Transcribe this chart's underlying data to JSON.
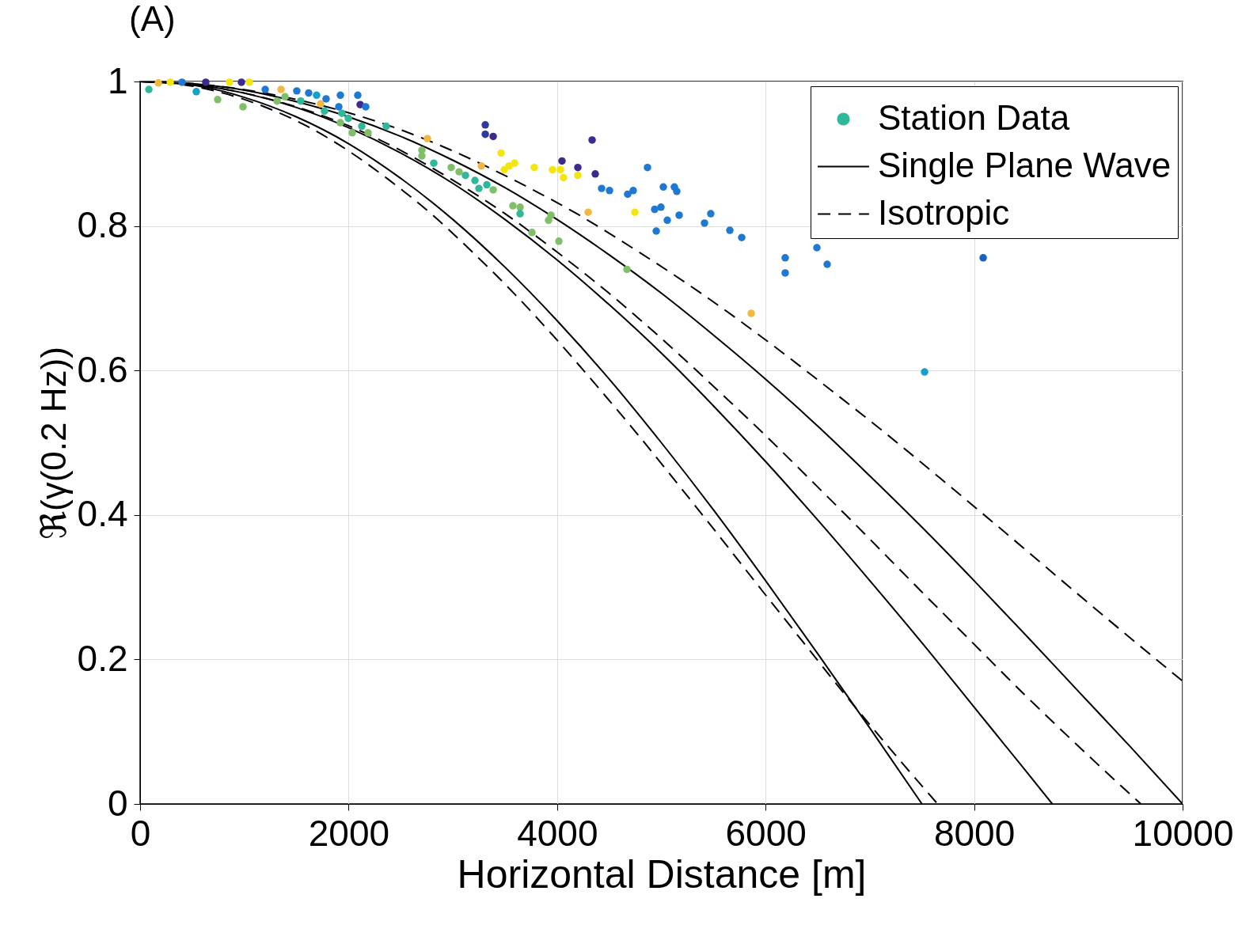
{
  "chart_data": {
    "type": "scatter",
    "title": "(A)",
    "xlabel": "Horizontal Distance [m]",
    "ylabel": "ℜ(γ(0.2 Hz))",
    "xlim": [
      0,
      10000
    ],
    "xticks": [
      0,
      2000,
      4000,
      6000,
      8000,
      10000
    ],
    "ylim": [
      0,
      1
    ],
    "yticks": [
      0,
      0.2,
      0.4,
      0.6,
      0.8,
      1
    ],
    "grid": true,
    "legend": "top right",
    "series": [
      {
        "name": "Station Data",
        "marker": "circle",
        "color": "#30b89a",
        "x": [
          84,
          175,
          289,
          402,
          539,
          630,
          744,
          858,
          972,
          987,
          1048,
          1200,
          1352,
          1390,
          1503,
          1617,
          1693,
          1731,
          1784,
          1921,
          1936,
          2035,
          2088,
          2111,
          2164,
          1921,
          2126,
          2187,
          2361,
          1769,
          1541,
          1314,
          1997,
          1906,
          2756,
          2703,
          2703,
          2817,
          2984,
          3060,
          3121,
          3212,
          3250,
          3273,
          3311,
          3311,
          3387,
          3326,
          3387,
          3463,
          3493,
          3538,
          3592,
          3576,
          3645,
          3645,
          3759,
          3781,
          3918,
          3941,
          3956,
          4017,
          4032,
          4047,
          4062,
          4199,
          4199,
          4298,
          4336,
          4366,
          4427,
          4503,
          4670,
          4677,
          4730,
          4746,
          4867,
          4936,
          4951,
          4996,
          5019,
          5057,
          5125,
          5148,
          5171,
          5414,
          5474,
          5657,
          5771,
          5862,
          6188,
          6188,
          6492,
          6591,
          7525,
          8087
        ],
        "values": [
          0.989,
          0.998,
          0.999,
          0.999,
          0.986,
          0.999,
          0.975,
          0.999,
          0.999,
          0.965,
          0.999,
          0.989,
          0.989,
          0.979,
          0.987,
          0.984,
          0.981,
          0.969,
          0.976,
          0.981,
          0.956,
          0.929,
          0.981,
          0.968,
          0.965,
          0.943,
          0.938,
          0.929,
          0.938,
          0.959,
          0.973,
          0.973,
          0.949,
          0.965,
          0.921,
          0.905,
          0.897,
          0.887,
          0.881,
          0.875,
          0.87,
          0.863,
          0.852,
          0.883,
          0.94,
          0.927,
          0.924,
          0.857,
          0.85,
          0.901,
          0.878,
          0.883,
          0.887,
          0.828,
          0.826,
          0.817,
          0.791,
          0.881,
          0.808,
          0.815,
          0.878,
          0.779,
          0.878,
          0.89,
          0.867,
          0.881,
          0.87,
          0.819,
          0.919,
          0.872,
          0.852,
          0.849,
          0.74,
          0.844,
          0.849,
          0.819,
          0.881,
          0.823,
          0.793,
          0.826,
          0.854,
          0.808,
          0.854,
          0.848,
          0.815,
          0.804,
          0.817,
          0.794,
          0.784,
          0.679,
          0.756,
          0.735,
          0.77,
          0.747,
          0.598,
          0.756
        ],
        "colors": [
          "#30b89a",
          "#f0b840",
          "#f5e50f",
          "#1f78d1",
          "#14a0c8",
          "#3f2a8c",
          "#7fbf6a",
          "#f5e50f",
          "#3f2a8c",
          "#7fbf6a",
          "#f5e50f",
          "#1f78d1",
          "#f0b840",
          "#7fbf6a",
          "#1f78d1",
          "#1f78d1",
          "#14a0c8",
          "#f0b840",
          "#1f78d1",
          "#1f78d1",
          "#30b89a",
          "#7fbf6a",
          "#1f78d1",
          "#3f2a8c",
          "#1f78d1",
          "#7fbf6a",
          "#30b89a",
          "#7fbf6a",
          "#30b89a",
          "#30b89a",
          "#30b89a",
          "#7fbf6a",
          "#30b89a",
          "#1f78d1",
          "#f0b840",
          "#7fbf6a",
          "#7fbf6a",
          "#30b89a",
          "#7fbf6a",
          "#7fbf6a",
          "#30b89a",
          "#30b89a",
          "#30b89a",
          "#f0b840",
          "#2c3aa0",
          "#2c3aa0",
          "#3f2a8c",
          "#30b89a",
          "#7fbf6a",
          "#f5e50f",
          "#f5e50f",
          "#f5e50f",
          "#f5e50f",
          "#7fbf6a",
          "#7fbf6a",
          "#30b89a",
          "#7fbf6a",
          "#f5e50f",
          "#7fbf6a",
          "#7fbf6a",
          "#f5e50f",
          "#7fbf6a",
          "#f5e50f",
          "#3f2a8c",
          "#f5e50f",
          "#3f2a8c",
          "#f5e50f",
          "#f0b840",
          "#3f2a8c",
          "#3f2a8c",
          "#1f78d1",
          "#1f78d1",
          "#7fbf6a",
          "#1f78d1",
          "#1f78d1",
          "#f5e50f",
          "#1f78d1",
          "#1f78d1",
          "#1f78d1",
          "#1f78d1",
          "#1f78d1",
          "#1f78d1",
          "#1f78d1",
          "#1f78d1",
          "#1f78d1",
          "#1f78d1",
          "#1f78d1",
          "#1f78d1",
          "#1f78d1",
          "#f0b840",
          "#1f78d1",
          "#1f78d1",
          "#1f78d1",
          "#1f78d1",
          "#14a0c8",
          "#1860c8"
        ]
      },
      {
        "name": "Single Plane Wave",
        "type": "line",
        "color": "#000000",
        "line_style": "solid",
        "x": [
          0,
          500,
          1000,
          1500,
          2000,
          2500,
          3000,
          3500,
          4000,
          4500,
          5000,
          5500,
          6000,
          6500,
          7000,
          7500
        ],
        "values": [
          1,
          0.995,
          0.978,
          0.951,
          0.914,
          0.866,
          0.809,
          0.743,
          0.669,
          0.588,
          0.5,
          0.407,
          0.309,
          0.208,
          0.105,
          0
        ]
      },
      {
        "type": "line",
        "color": "#000000",
        "line_style": "solid",
        "x": [
          0,
          500,
          1000,
          1500,
          2000,
          2500,
          3000,
          3500,
          4000,
          4500,
          5000,
          5500,
          6000,
          6500,
          7000,
          7500,
          8000,
          8500,
          8750
        ],
        "values": [
          1,
          0.996,
          0.984,
          0.964,
          0.936,
          0.901,
          0.859,
          0.809,
          0.753,
          0.691,
          0.624,
          0.551,
          0.474,
          0.393,
          0.309,
          0.223,
          0.134,
          0.045,
          0
        ]
      },
      {
        "type": "line",
        "color": "#000000",
        "line_style": "solid",
        "x": [
          0,
          500,
          1000,
          1500,
          2000,
          2500,
          3000,
          3500,
          4000,
          4500,
          5000,
          5500,
          6000,
          6500,
          7000,
          7500,
          8000,
          8500,
          9000,
          9500,
          10000
        ],
        "values": [
          1,
          0.997,
          0.988,
          0.972,
          0.951,
          0.924,
          0.891,
          0.853,
          0.809,
          0.76,
          0.707,
          0.649,
          0.588,
          0.523,
          0.454,
          0.383,
          0.309,
          0.233,
          0.156,
          0.079,
          0
        ]
      },
      {
        "name": "Isotropic",
        "type": "line",
        "color": "#000000",
        "line_style": "dashed",
        "x": [
          0,
          398,
          795,
          1193,
          1590,
          1988,
          2385,
          2783,
          3180,
          3578,
          3975,
          4373,
          4770,
          5168,
          5565,
          5963,
          6360,
          6758,
          7155,
          7314,
          7650
        ],
        "values": [
          1,
          0.996,
          0.984,
          0.965,
          0.939,
          0.905,
          0.864,
          0.818,
          0.765,
          0.708,
          0.646,
          0.58,
          0.512,
          0.441,
          0.369,
          0.296,
          0.224,
          0.152,
          0.083,
          0.056,
          0
        ]
      },
      {
        "type": "line",
        "color": "#000000",
        "line_style": "dashed",
        "x": [
          0,
          499,
          998,
          1496,
          1995,
          2494,
          2993,
          3491,
          3990,
          4489,
          4988,
          5486,
          5985,
          6484,
          6983,
          7481,
          7980,
          8479,
          8978,
          9177,
          9600
        ],
        "values": [
          1,
          0.996,
          0.984,
          0.965,
          0.939,
          0.905,
          0.864,
          0.818,
          0.765,
          0.708,
          0.646,
          0.58,
          0.512,
          0.441,
          0.369,
          0.296,
          0.224,
          0.152,
          0.083,
          0.056,
          0
        ]
      },
      {
        "type": "line",
        "color": "#000000",
        "line_style": "dashed",
        "x": [
          0,
          597,
          1193,
          1790,
          2387,
          2983,
          3580,
          4177,
          4773,
          5370,
          5966,
          6563,
          7160,
          7757,
          8353,
          8950,
          9546,
          10000
        ],
        "values": [
          1,
          0.996,
          0.984,
          0.965,
          0.939,
          0.905,
          0.864,
          0.818,
          0.765,
          0.708,
          0.646,
          0.58,
          0.512,
          0.441,
          0.369,
          0.296,
          0.224,
          0.17
        ]
      }
    ]
  }
}
